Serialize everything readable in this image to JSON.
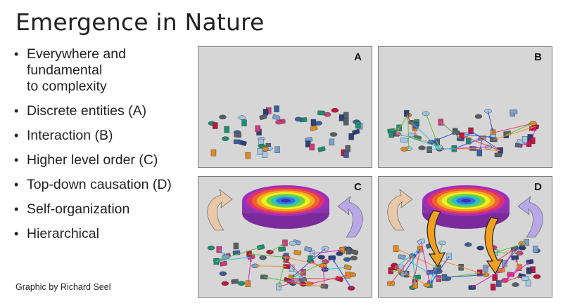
{
  "title": "Emergence in Nature",
  "bullets": [
    "Everywhere and\nfundamental\nto complexity",
    "Discrete entities (A)",
    "Interaction (B)",
    "Higher level order (C)",
    "Top-down causation (D)",
    "Self-organization",
    "Hierarchical"
  ],
  "credit": "Graphic by Richard Seel",
  "panels": [
    {
      "label": "A",
      "interaction": false,
      "order": false,
      "topdown": false
    },
    {
      "label": "B",
      "interaction": true,
      "order": false,
      "topdown": false
    },
    {
      "label": "C",
      "interaction": true,
      "order": true,
      "topdown": false
    },
    {
      "label": "D",
      "interaction": true,
      "order": true,
      "topdown": true
    }
  ]
}
